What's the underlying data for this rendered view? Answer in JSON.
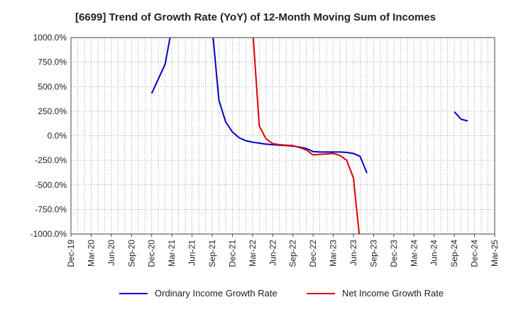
{
  "chart_data": {
    "type": "line",
    "title": "[6699]  Trend of Growth Rate (YoY) of 12-Month Moving Sum of Incomes",
    "xlabel": "",
    "ylabel": "",
    "ylim": [
      -1000,
      1000
    ],
    "y_ticks": [
      1000,
      750,
      500,
      250,
      0,
      -250,
      -500,
      -750,
      -1000
    ],
    "y_tick_labels": [
      "1000.0%",
      "750.0%",
      "500.0%",
      "250.0%",
      "0.0%",
      "-250.0%",
      "-500.0%",
      "-750.0%",
      "-1000.0%"
    ],
    "x_tick_labels": [
      "Dec-19",
      "Mar-20",
      "Jun-20",
      "Sep-20",
      "Dec-20",
      "Mar-21",
      "Jun-21",
      "Sep-21",
      "Dec-21",
      "Mar-22",
      "Jun-22",
      "Sep-22",
      "Dec-22",
      "Mar-23",
      "Jun-23",
      "Sep-23",
      "Dec-23",
      "Mar-24",
      "Jun-24",
      "Sep-24",
      "Dec-24",
      "Mar-25"
    ],
    "x_start": "2019-12",
    "x_end": "2025-03",
    "grid": true,
    "legend_position": "bottom",
    "series": [
      {
        "name": "Ordinary Income Growth Rate",
        "color": "#0000cc",
        "points": [
          [
            "2020-12",
            430
          ],
          [
            "2021-02",
            730
          ],
          [
            "2021-03",
            1100
          ],
          null,
          [
            "2021-09",
            1100
          ],
          [
            "2021-10",
            360
          ],
          [
            "2021-11",
            140
          ],
          [
            "2021-12",
            40
          ],
          [
            "2022-01",
            -20
          ],
          [
            "2022-02",
            -50
          ],
          [
            "2022-03",
            -65
          ],
          [
            "2022-04",
            -75
          ],
          [
            "2022-05",
            -85
          ],
          [
            "2022-06",
            -90
          ],
          [
            "2022-07",
            -95
          ],
          [
            "2022-08",
            -100
          ],
          [
            "2022-09",
            -105
          ],
          [
            "2022-10",
            -115
          ],
          [
            "2022-11",
            -130
          ],
          [
            "2022-12",
            -160
          ],
          [
            "2023-01",
            -165
          ],
          [
            "2023-02",
            -165
          ],
          [
            "2023-03",
            -165
          ],
          [
            "2023-04",
            -165
          ],
          [
            "2023-05",
            -170
          ],
          [
            "2023-06",
            -180
          ],
          [
            "2023-07",
            -210
          ],
          [
            "2023-08",
            -380
          ],
          null,
          [
            "2024-09",
            245
          ],
          [
            "2024-10",
            170
          ],
          [
            "2024-11",
            150
          ]
        ]
      },
      {
        "name": "Net Income Growth Rate",
        "color": "#dd0000",
        "points": [
          [
            "2022-03",
            1100
          ],
          [
            "2022-04",
            100
          ],
          [
            "2022-05",
            -30
          ],
          [
            "2022-06",
            -80
          ],
          [
            "2022-07",
            -90
          ],
          [
            "2022-08",
            -95
          ],
          [
            "2022-09",
            -100
          ],
          [
            "2022-10",
            -120
          ],
          [
            "2022-11",
            -145
          ],
          [
            "2022-12",
            -195
          ],
          [
            "2023-01",
            -190
          ],
          [
            "2023-02",
            -185
          ],
          [
            "2023-03",
            -180
          ],
          [
            "2023-04",
            -200
          ],
          [
            "2023-05",
            -250
          ],
          [
            "2023-06",
            -430
          ],
          [
            "2023-07",
            -1100
          ]
        ]
      }
    ]
  }
}
